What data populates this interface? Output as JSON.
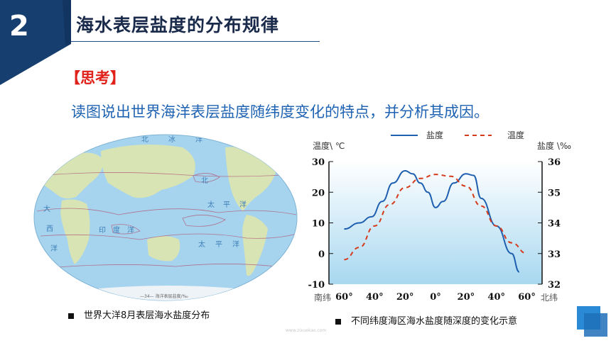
{
  "slide": {
    "section_number": "2",
    "title": "海水表层盐度的分布规律",
    "think_label": "【思考】",
    "question": "读图说出世界海洋表层盐度随纬度变化的特点，并分析其成因。",
    "watermark_url": "www.zixuekao.com",
    "colors": {
      "navy": "#163e6e",
      "accent_red": "#e0211a",
      "question_blue": "#1f63b3",
      "deco_blue": "#2a8ad6"
    }
  },
  "map": {
    "ocean_labels": [
      "北",
      "太",
      "平",
      "洋",
      "大",
      "西",
      "洋",
      "印",
      "度",
      "洋",
      "太",
      "平",
      "洋",
      "北",
      "冰",
      "洋"
    ],
    "legend_text": "—34— 海洋表层盐度/‰",
    "caption": "世界大洋8月表层海水盐度分布"
  },
  "chart_data": {
    "type": "line",
    "legend": [
      "盐度",
      "温度"
    ],
    "left_axis_label": "温度\\ ℃",
    "right_axis_label": "盐度 \\‰",
    "left_ticks": [
      "30",
      "20",
      "10",
      "0",
      "-10"
    ],
    "right_ticks": [
      "36",
      "35",
      "34",
      "33",
      "32"
    ],
    "ylim_left": [
      -10,
      30
    ],
    "ylim_right": [
      32,
      36
    ],
    "x_ticks": [
      "60°",
      "40°",
      "20°",
      "0°",
      "20°",
      "40°",
      "60°"
    ],
    "x_label_south": "南纬",
    "x_label_north": "北纬",
    "series": [
      {
        "name": "盐度",
        "axis": "right",
        "color": "#1f5fb0",
        "style": "solid",
        "points": [
          [
            -60,
            33.8
          ],
          [
            -50,
            34.0
          ],
          [
            -42,
            34.2
          ],
          [
            -35,
            34.7
          ],
          [
            -28,
            35.3
          ],
          [
            -20,
            35.7
          ],
          [
            -15,
            35.6
          ],
          [
            -10,
            35.3
          ],
          [
            -5,
            35.0
          ],
          [
            0,
            34.5
          ],
          [
            5,
            34.7
          ],
          [
            12,
            35.3
          ],
          [
            20,
            35.6
          ],
          [
            25,
            35.55
          ],
          [
            30,
            34.8
          ],
          [
            40,
            33.9
          ],
          [
            50,
            33.0
          ],
          [
            55,
            32.4
          ]
        ]
      },
      {
        "name": "温度",
        "axis": "left",
        "color": "#d63a1c",
        "style": "dashed",
        "points": [
          [
            -60,
            -2
          ],
          [
            -50,
            2
          ],
          [
            -40,
            9
          ],
          [
            -30,
            16
          ],
          [
            -20,
            21.5
          ],
          [
            -10,
            24.5
          ],
          [
            0,
            25.8
          ],
          [
            10,
            25.2
          ],
          [
            20,
            22
          ],
          [
            30,
            15.5
          ],
          [
            40,
            9
          ],
          [
            50,
            3.5
          ],
          [
            60,
            0
          ]
        ]
      }
    ],
    "caption": "不同纬度海区海水盐度随深度的变化示意"
  }
}
